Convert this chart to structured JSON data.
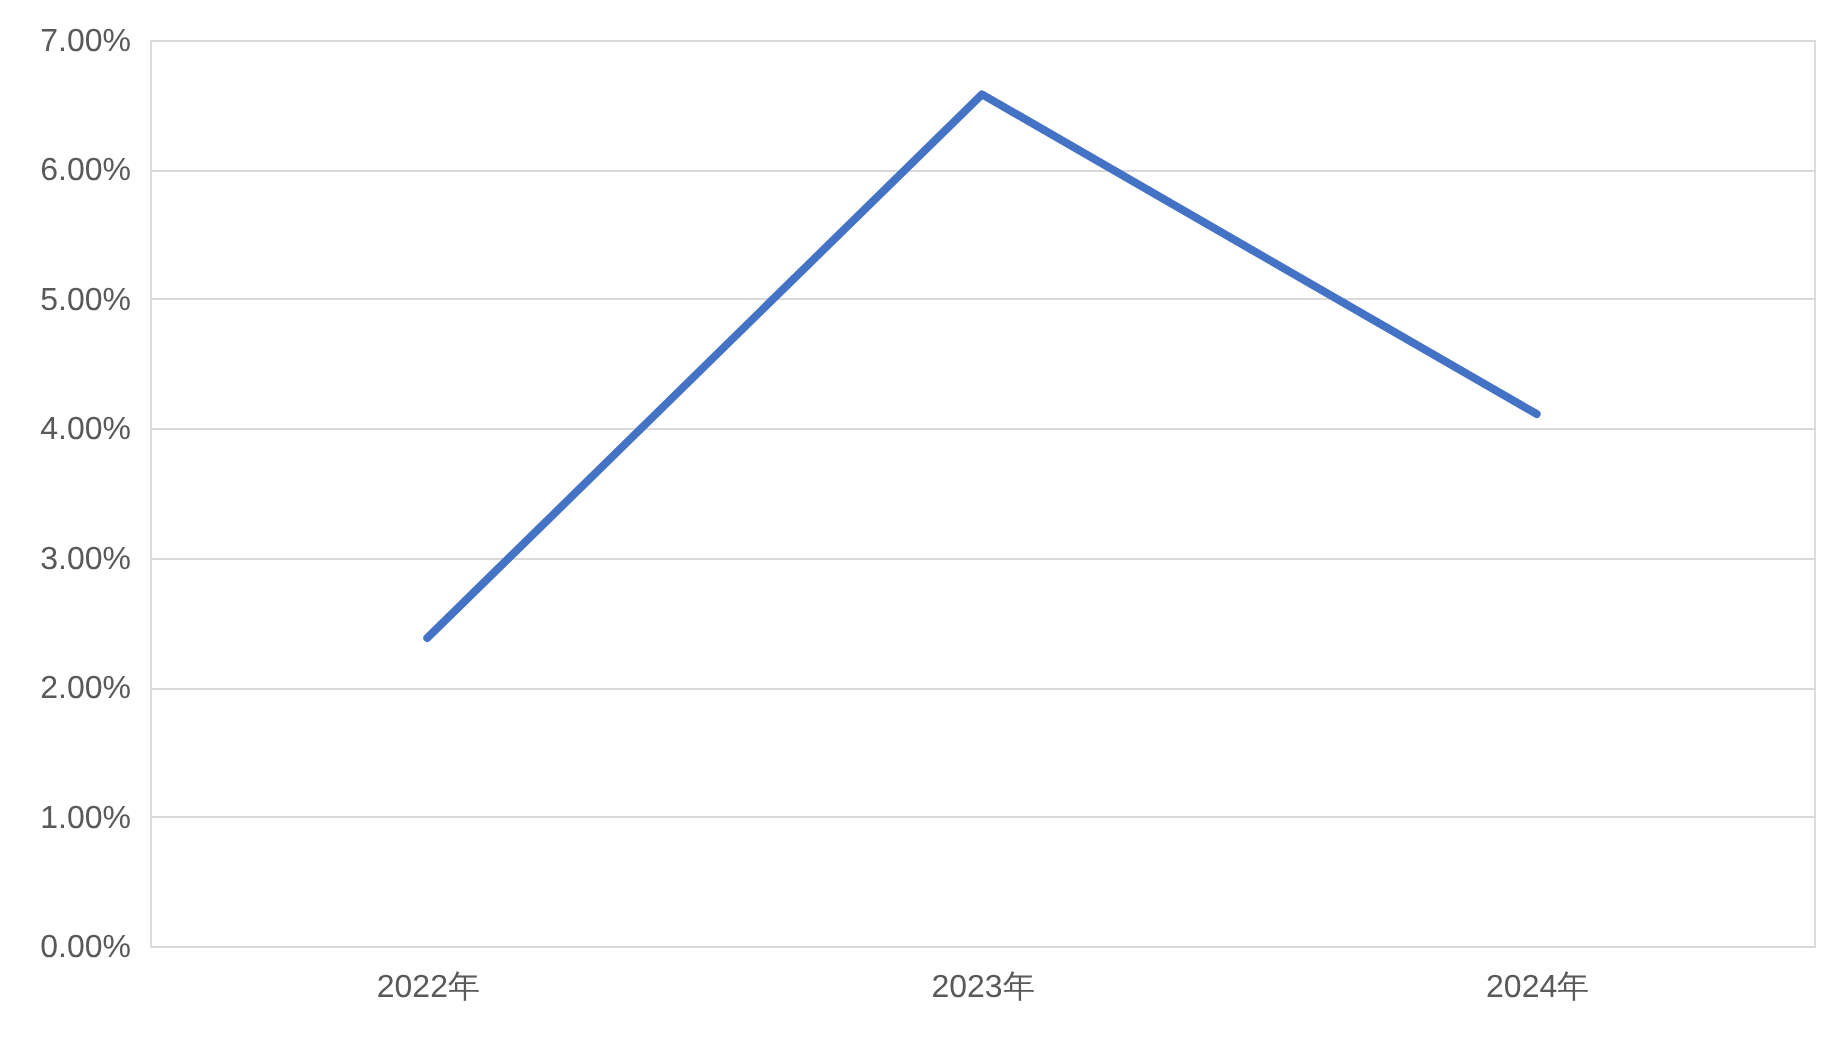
{
  "chart_data": {
    "type": "line",
    "categories": [
      "2022年",
      "2023年",
      "2024年"
    ],
    "series": [
      {
        "color": "#4472c4",
        "values": [
          2.38,
          6.58,
          4.11
        ]
      }
    ],
    "ylim": [
      0,
      7
    ],
    "yticks": [
      {
        "value": 0,
        "label": "0.00%"
      },
      {
        "value": 1,
        "label": "1.00%"
      },
      {
        "value": 2,
        "label": "2.00%"
      },
      {
        "value": 3,
        "label": "3.00%"
      },
      {
        "value": 4,
        "label": "4.00%"
      },
      {
        "value": 5,
        "label": "5.00%"
      },
      {
        "value": 6,
        "label": "6.00%"
      },
      {
        "value": 7,
        "label": "7.00%"
      }
    ],
    "grid": "y",
    "legend": false
  }
}
